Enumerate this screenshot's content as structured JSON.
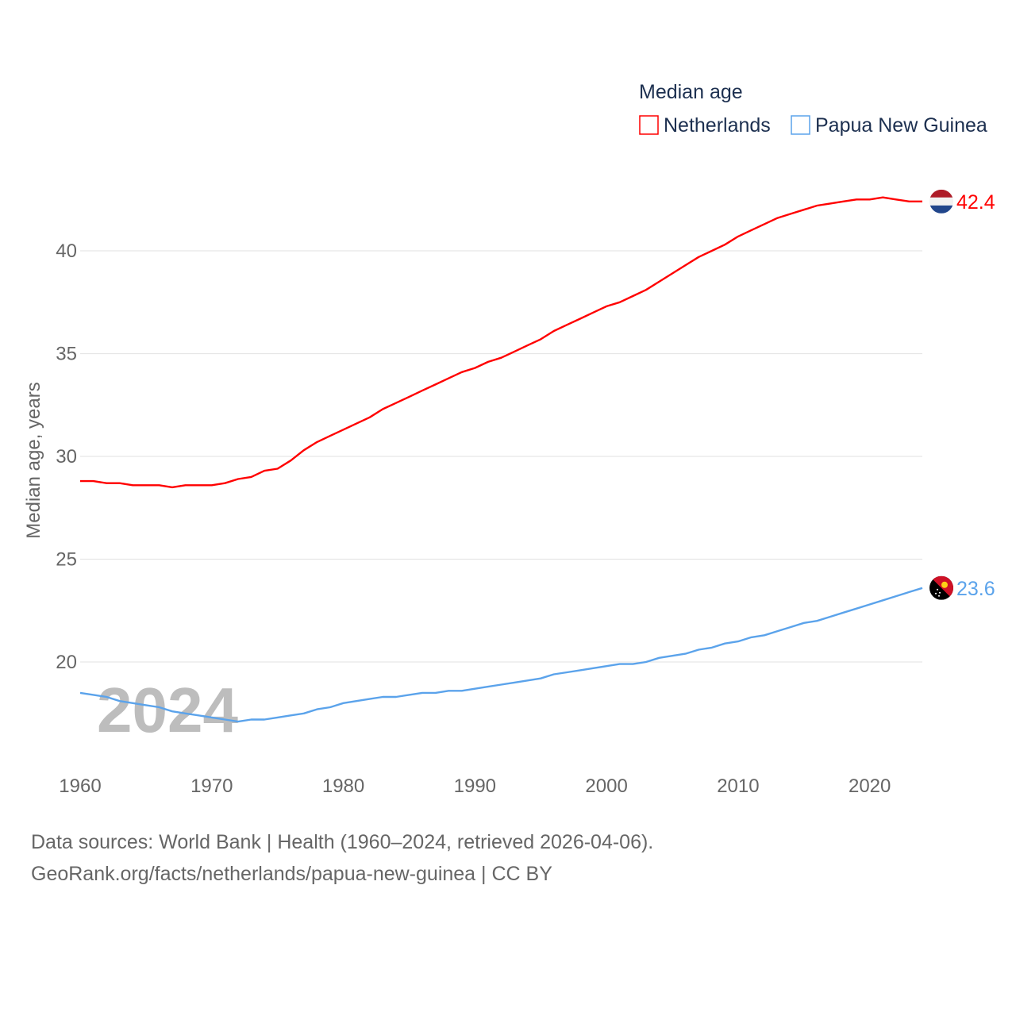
{
  "chart_data": {
    "type": "line",
    "title": "Median age",
    "xlabel": "",
    "ylabel": "Median age, years",
    "xlim": [
      1960,
      2024
    ],
    "ylim": [
      15,
      44
    ],
    "x_ticks": [
      "1960",
      "1970",
      "1980",
      "1990",
      "2000",
      "2010",
      "2020"
    ],
    "y_ticks": [
      "20",
      "25",
      "30",
      "35",
      "40"
    ],
    "grid": true,
    "legend_placement": "top-right",
    "watermark_year": "2024",
    "x": [
      1960,
      1961,
      1962,
      1963,
      1964,
      1965,
      1966,
      1967,
      1968,
      1969,
      1970,
      1971,
      1972,
      1973,
      1974,
      1975,
      1976,
      1977,
      1978,
      1979,
      1980,
      1981,
      1982,
      1983,
      1984,
      1985,
      1986,
      1987,
      1988,
      1989,
      1990,
      1991,
      1992,
      1993,
      1994,
      1995,
      1996,
      1997,
      1998,
      1999,
      2000,
      2001,
      2002,
      2003,
      2004,
      2005,
      2006,
      2007,
      2008,
      2009,
      2010,
      2011,
      2012,
      2013,
      2014,
      2015,
      2016,
      2017,
      2018,
      2019,
      2020,
      2021,
      2022,
      2023,
      2024
    ],
    "series": [
      {
        "name": "Netherlands",
        "color": "#ff0000",
        "end_label": "42.4",
        "values": [
          28.8,
          28.8,
          28.7,
          28.7,
          28.6,
          28.6,
          28.6,
          28.5,
          28.6,
          28.6,
          28.6,
          28.7,
          28.9,
          29.0,
          29.3,
          29.4,
          29.8,
          30.3,
          30.7,
          31.0,
          31.3,
          31.6,
          31.9,
          32.3,
          32.6,
          32.9,
          33.2,
          33.5,
          33.8,
          34.1,
          34.3,
          34.6,
          34.8,
          35.1,
          35.4,
          35.7,
          36.1,
          36.4,
          36.7,
          37.0,
          37.3,
          37.5,
          37.8,
          38.1,
          38.5,
          38.9,
          39.3,
          39.7,
          40.0,
          40.3,
          40.7,
          41.0,
          41.3,
          41.6,
          41.8,
          42.0,
          42.2,
          42.3,
          42.4,
          42.5,
          42.5,
          42.6,
          42.5,
          42.4,
          42.4
        ]
      },
      {
        "name": "Papua New Guinea",
        "color": "#5ba3eb",
        "end_label": "23.6",
        "values": [
          18.5,
          18.4,
          18.3,
          18.1,
          18.0,
          17.9,
          17.8,
          17.6,
          17.5,
          17.4,
          17.3,
          17.2,
          17.1,
          17.2,
          17.2,
          17.3,
          17.4,
          17.5,
          17.7,
          17.8,
          18.0,
          18.1,
          18.2,
          18.3,
          18.3,
          18.4,
          18.5,
          18.5,
          18.6,
          18.6,
          18.7,
          18.8,
          18.9,
          19.0,
          19.1,
          19.2,
          19.4,
          19.5,
          19.6,
          19.7,
          19.8,
          19.9,
          19.9,
          20.0,
          20.2,
          20.3,
          20.4,
          20.6,
          20.7,
          20.9,
          21.0,
          21.2,
          21.3,
          21.5,
          21.7,
          21.9,
          22.0,
          22.2,
          22.4,
          22.6,
          22.8,
          23.0,
          23.2,
          23.4,
          23.6
        ]
      }
    ]
  },
  "footer": {
    "line1": "Data sources: World Bank | Health (1960–2024, retrieved 2026-04-06).",
    "line2": "GeoRank.org/facts/netherlands/papua-new-guinea | CC BY"
  }
}
